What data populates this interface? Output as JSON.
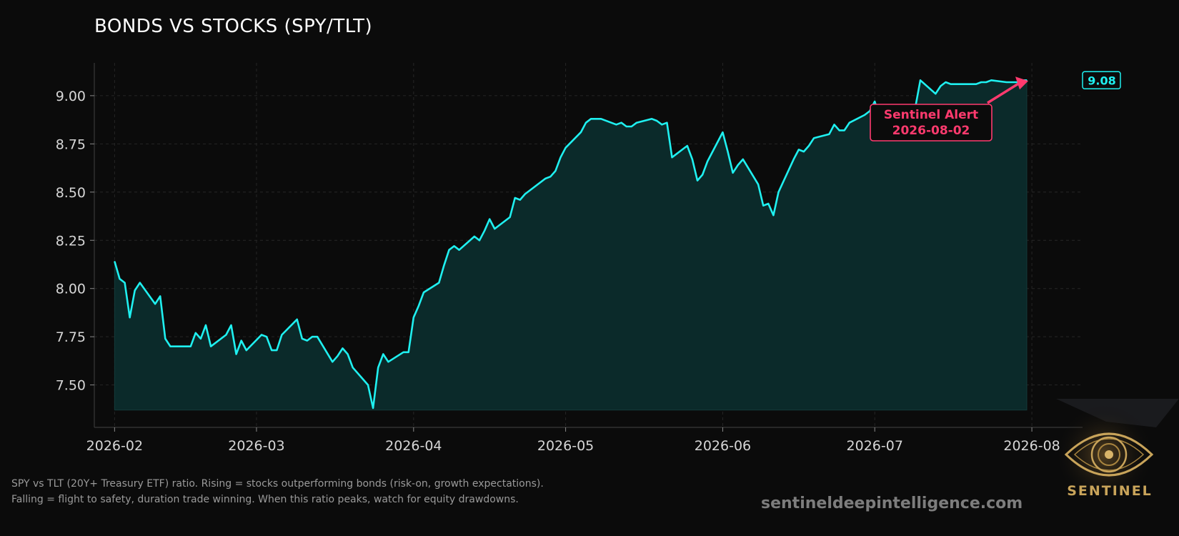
{
  "chart_data": {
    "type": "area",
    "title": "BONDS VS STOCKS (SPY/TLT)",
    "xlabel": "",
    "ylabel": "",
    "x_ticks": [
      "2026-02",
      "2026-03",
      "2026-04",
      "2026-05",
      "2026-06",
      "2026-07",
      "2026-08"
    ],
    "y_ticks": [
      "7.50",
      "7.75",
      "8.00",
      "8.25",
      "8.50",
      "8.75",
      "9.00"
    ],
    "xlim": [
      "2026-01-28",
      "2026-08-11"
    ],
    "ylim": [
      7.28,
      9.17
    ],
    "fill_baseline": 7.37,
    "grid": true,
    "colors": {
      "line": "#1ff0f0",
      "fill": "#0b2a2a",
      "alert": "#ff3a6e",
      "background": "#0b0b0b"
    },
    "series": [
      {
        "x": [
          "2026-02-01",
          "2026-02-02",
          "2026-02-03",
          "2026-02-04",
          "2026-02-05",
          "2026-02-06",
          "2026-02-09",
          "2026-02-10",
          "2026-02-11",
          "2026-02-12",
          "2026-02-13",
          "2026-02-16",
          "2026-02-17",
          "2026-02-18",
          "2026-02-19",
          "2026-02-20",
          "2026-02-23",
          "2026-02-24",
          "2026-02-25",
          "2026-02-26",
          "2026-02-27",
          "2026-03-02",
          "2026-03-03",
          "2026-03-04",
          "2026-03-05",
          "2026-03-06",
          "2026-03-09",
          "2026-03-10",
          "2026-03-11",
          "2026-03-12",
          "2026-03-13",
          "2026-03-16",
          "2026-03-17",
          "2026-03-18",
          "2026-03-19",
          "2026-03-20",
          "2026-03-23",
          "2026-03-24",
          "2026-03-25",
          "2026-03-26",
          "2026-03-27",
          "2026-03-30",
          "2026-03-31",
          "2026-04-01",
          "2026-04-02",
          "2026-04-03",
          "2026-04-06",
          "2026-04-07",
          "2026-04-08",
          "2026-04-09",
          "2026-04-10",
          "2026-04-13",
          "2026-04-14",
          "2026-04-15",
          "2026-04-16",
          "2026-04-17",
          "2026-04-20",
          "2026-04-21",
          "2026-04-22",
          "2026-04-23",
          "2026-04-24",
          "2026-04-27",
          "2026-04-28",
          "2026-04-29",
          "2026-04-30",
          "2026-05-01",
          "2026-05-04",
          "2026-05-05",
          "2026-05-06",
          "2026-05-07",
          "2026-05-08",
          "2026-05-11",
          "2026-05-12",
          "2026-05-13",
          "2026-05-14",
          "2026-05-15",
          "2026-05-18",
          "2026-05-19",
          "2026-05-20",
          "2026-05-21",
          "2026-05-22",
          "2026-05-25",
          "2026-05-26",
          "2026-05-27",
          "2026-05-28",
          "2026-05-29",
          "2026-06-01",
          "2026-06-02",
          "2026-06-03",
          "2026-06-04",
          "2026-06-05",
          "2026-06-08",
          "2026-06-09",
          "2026-06-10",
          "2026-06-11",
          "2026-06-12",
          "2026-06-15",
          "2026-06-16",
          "2026-06-17",
          "2026-06-18",
          "2026-06-19",
          "2026-06-22",
          "2026-06-23",
          "2026-06-24",
          "2026-06-25",
          "2026-06-26",
          "2026-06-29",
          "2026-06-30",
          "2026-07-01",
          "2026-07-02",
          "2026-07-03",
          "2026-07-06",
          "2026-07-07",
          "2026-07-08",
          "2026-07-09",
          "2026-07-10",
          "2026-07-13",
          "2026-07-14",
          "2026-07-15",
          "2026-07-16",
          "2026-07-17",
          "2026-07-20",
          "2026-07-21",
          "2026-07-22",
          "2026-07-23",
          "2026-07-24",
          "2026-07-27",
          "2026-07-28",
          "2026-07-29",
          "2026-07-30",
          "2026-07-31"
        ],
        "y": [
          8.14,
          8.05,
          8.03,
          7.85,
          7.99,
          8.03,
          7.92,
          7.96,
          7.74,
          7.7,
          7.7,
          7.7,
          7.77,
          7.74,
          7.81,
          7.7,
          7.76,
          7.81,
          7.66,
          7.73,
          7.68,
          7.76,
          7.75,
          7.68,
          7.68,
          7.76,
          7.84,
          7.74,
          7.73,
          7.75,
          7.75,
          7.62,
          7.65,
          7.69,
          7.66,
          7.59,
          7.5,
          7.38,
          7.59,
          7.66,
          7.62,
          7.67,
          7.67,
          7.85,
          7.91,
          7.98,
          8.03,
          8.12,
          8.2,
          8.22,
          8.2,
          8.27,
          8.25,
          8.3,
          8.36,
          8.31,
          8.37,
          8.47,
          8.46,
          8.49,
          8.51,
          8.57,
          8.58,
          8.61,
          8.68,
          8.73,
          8.81,
          8.86,
          8.88,
          8.88,
          8.88,
          8.85,
          8.86,
          8.84,
          8.84,
          8.86,
          8.88,
          8.87,
          8.85,
          8.86,
          8.68,
          8.74,
          8.67,
          8.56,
          8.59,
          8.66,
          8.81,
          8.71,
          8.6,
          8.64,
          8.67,
          8.54,
          8.43,
          8.44,
          8.38,
          8.5,
          8.67,
          8.72,
          8.71,
          8.74,
          8.78,
          8.8,
          8.85,
          8.82,
          8.82,
          8.86,
          8.9,
          8.92,
          8.97,
          8.88,
          8.88,
          8.82,
          8.8,
          8.81,
          8.94,
          9.08,
          9.01,
          9.05,
          9.07,
          9.06,
          9.06,
          9.06,
          9.06,
          9.07,
          9.07,
          9.08,
          9.07,
          9.07,
          9.07,
          9.08,
          9.08
        ]
      }
    ],
    "last_value_label": "9.08",
    "annotation": {
      "text_line1": "Sentinel Alert",
      "text_line2": "2026-08-02",
      "points_to": [
        "2026-07-31",
        9.08
      ]
    }
  },
  "caption": {
    "line1": "SPY vs TLT (20Y+ Treasury ETF) ratio. Rising = stocks outperforming bonds (risk-on, growth expectations).",
    "line2": "Falling = flight to safety, duration trade winning. When this ratio peaks, watch for equity drawdowns."
  },
  "website": "sentineldeepintelligence.com",
  "logo_text": "SENTINEL"
}
